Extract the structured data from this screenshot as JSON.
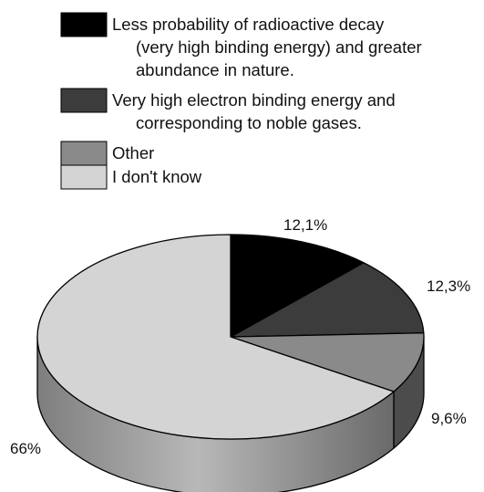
{
  "chart_data": {
    "type": "pie",
    "style": "3d",
    "title": "",
    "categories": [
      "Less probability of radioactive decay (very high binding energy) and greater abundance in nature.",
      "Very high electron binding energy and corresponding to noble gases.",
      "Other",
      "I don't know"
    ],
    "values": [
      12.1,
      12.3,
      9.6,
      66
    ],
    "value_labels": [
      "12,1%",
      "12,3%",
      "9,6%",
      "66%"
    ],
    "colors": [
      "#000000",
      "#3c3c3c",
      "#8a8a8a",
      "#d4d4d4"
    ],
    "legend_position": "top",
    "legend": [
      {
        "lines": [
          "Less probability of radioactive decay",
          "(very high binding energy) and greater",
          "abundance in nature."
        ]
      },
      {
        "lines": [
          "Very high electron binding energy and",
          "corresponding to noble gases."
        ]
      },
      {
        "lines": [
          "Other"
        ]
      },
      {
        "lines": [
          "I don't know"
        ]
      }
    ]
  }
}
